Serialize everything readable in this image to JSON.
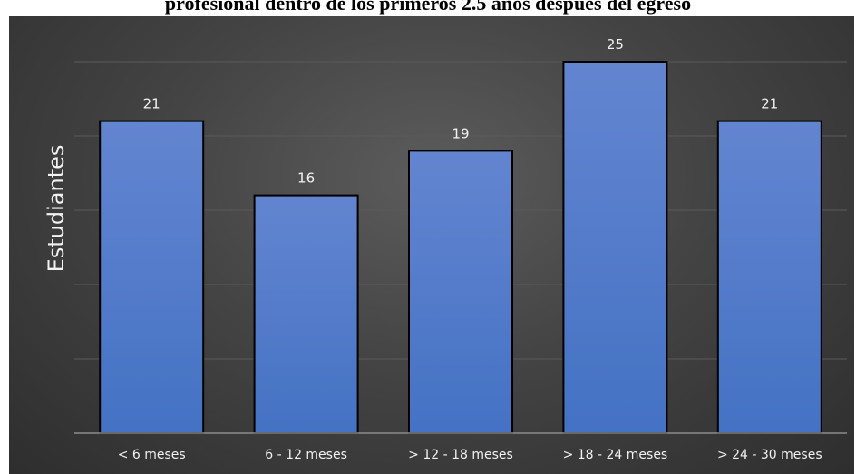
{
  "chart_data": {
    "type": "bar",
    "title": "profesional dentro de los primeros 2.5 años después del egreso",
    "ylabel": "Estudiantes",
    "xlabel": "",
    "categories": [
      "< 6 meses",
      "6 - 12 meses",
      "> 12 - 18 meses",
      "> 18 - 24 meses",
      "> 24 - 30 meses"
    ],
    "values": [
      21,
      16,
      19,
      25,
      21
    ],
    "ylim": [
      0,
      25
    ],
    "grid": true,
    "colors": {
      "bar": "#4472c4",
      "bar_top": "#6385d0",
      "background": "#404040",
      "text": "#f2f2f2",
      "grid": "#5a5a5a"
    }
  }
}
